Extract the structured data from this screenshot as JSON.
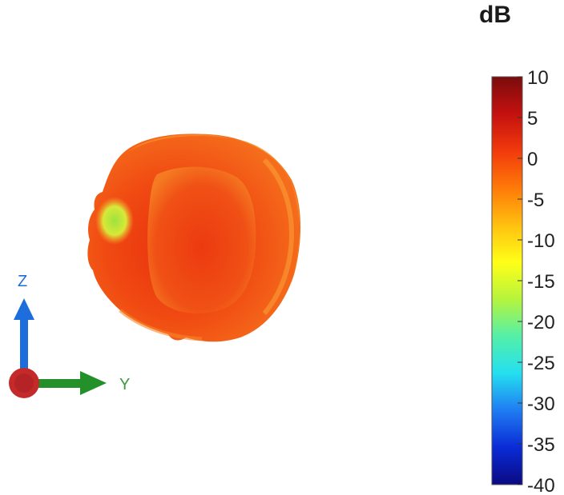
{
  "chart_data": {
    "type": "heatmap",
    "subtype": "3d-radiation-pattern",
    "colorbar": {
      "title": "dB",
      "range": [
        -40,
        10
      ],
      "ticks": [
        10,
        5,
        0,
        -5,
        -10,
        -15,
        -20,
        -25,
        -30,
        -35,
        -40
      ],
      "tick_labels": [
        "10",
        "5",
        "0",
        "-5",
        "-10",
        "-15",
        "-20",
        "-25",
        "-30",
        "-35",
        "-40"
      ],
      "colormap": [
        "#0a0a82",
        "#0a2bd6",
        "#1f7cf2",
        "#24dff0",
        "#54f0a8",
        "#b6f43c",
        "#ffff18",
        "#ffc010",
        "#ff7a08",
        "#f13a0c",
        "#c4110f",
        "#7a0c0c"
      ]
    },
    "axes_triad": {
      "labels": [
        "Z",
        "Y"
      ],
      "colors": {
        "z": "#1e6ddc",
        "y": "#23902a",
        "x": "#c42a2a"
      }
    },
    "pattern": {
      "value_range_shown": [
        -12,
        3
      ],
      "dominant_color": "#f25a14",
      "peak_color": "#e8300e",
      "rim_color": "#f88a26",
      "low_region_color": "#9ee23e"
    }
  }
}
